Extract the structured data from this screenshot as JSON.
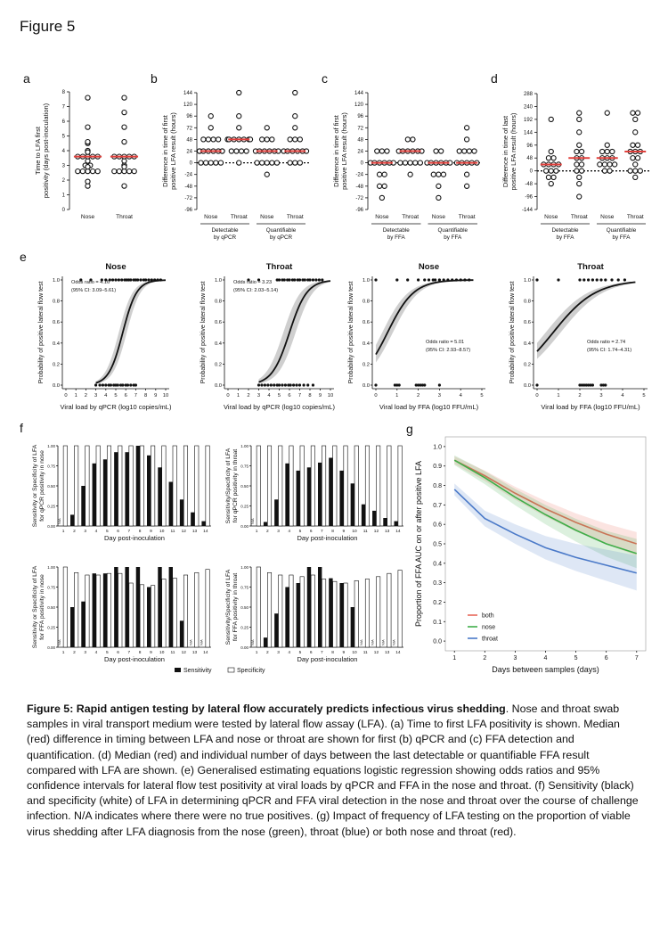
{
  "figure_title": "Figure 5",
  "caption": {
    "bold": "Figure 5: Rapid antigen testing by lateral flow accurately predicts infectious virus shedding",
    "text": ". Nose and throat swab samples in viral transport medium were tested by lateral flow assay (LFA). (a) Time to first LFA positivity is shown. Median (red) difference in timing between LFA and nose or throat are shown for first (b) qPCR and (c) FFA detection and quantification. (d) Median (red) and individual number of days between the last detectable or quantifiable FFA result compared with LFA are shown. (e) Generalised  estimating equations logistic regression showing odds ratios and 95% confidence intervals for lateral flow test positivity at viral loads by qPCR and FFA in the nose and throat. (f) Sensitivity (black) and specificity (white) of LFA in determining qPCR and FFA viral detection in the nose and throat over the course of challenge infection. N/A indicates where there were no true positives. (g) Impact of frequency of LFA testing on the proportion of viable virus shedding after LFA diagnosis from the nose (green), throat (blue) or both nose and throat (red)."
  },
  "colors": {
    "median": "#e0403c",
    "black": "#111111",
    "both": "#e8685a",
    "nose": "#3fae49",
    "throat": "#4a79c8"
  },
  "chart_data": [
    {
      "id": "a",
      "type": "scatter",
      "panel_label": "a",
      "ylabel": "Time to LFA first positivity (days post-inoculation)",
      "yticks": [
        "0",
        "1",
        "2",
        "3",
        "4",
        "5",
        "6",
        "7",
        "8"
      ],
      "ylim": [
        0,
        8
      ],
      "categories": [
        "Nose",
        "Throat"
      ],
      "points": [
        [
          1.6,
          1.9,
          2.6,
          2.6,
          2.6,
          2.6,
          2.6,
          2.9,
          3.0,
          3.0,
          3.3,
          3.6,
          3.6,
          3.6,
          3.6,
          3.6,
          3.9,
          4.0,
          4.5,
          4.6,
          5.6,
          7.6
        ],
        [
          1.6,
          2.6,
          2.6,
          2.6,
          2.6,
          2.6,
          2.9,
          3.0,
          3.3,
          3.6,
          3.6,
          3.6,
          3.6,
          3.6,
          4.6,
          5.6,
          6.6,
          7.6
        ]
      ],
      "medians": [
        3.6,
        3.6
      ]
    },
    {
      "id": "b",
      "type": "scatter",
      "panel_label": "b",
      "ylabel": "Difference in time of first positive LFA result (hours)",
      "yticks": [
        "-96",
        "-72",
        "-48",
        "-24",
        "0",
        "24",
        "48",
        "72",
        "96",
        "120",
        "144"
      ],
      "ylim": [
        -96,
        144
      ],
      "categories": [
        "Nose",
        "Throat",
        "Nose",
        "Throat"
      ],
      "groups": [
        "Detectable by qPCR",
        "Quantifiable by qPCR"
      ],
      "points": [
        [
          0,
          0,
          0,
          0,
          0,
          24,
          24,
          24,
          24,
          24,
          24,
          24,
          24,
          48,
          48,
          48,
          48,
          72,
          96
        ],
        [
          0,
          24,
          24,
          24,
          24,
          48,
          48,
          48,
          48,
          48,
          48,
          48,
          72,
          96,
          144
        ],
        [
          -24,
          0,
          0,
          0,
          0,
          0,
          24,
          24,
          24,
          24,
          24,
          24,
          48,
          48,
          48,
          72
        ],
        [
          0,
          0,
          0,
          24,
          24,
          24,
          24,
          24,
          24,
          48,
          48,
          48,
          72,
          96,
          144
        ]
      ],
      "medians": [
        24,
        48,
        24,
        24
      ]
    },
    {
      "id": "c",
      "type": "scatter",
      "panel_label": "c",
      "ylabel": "Difference in time of first positive LFA result (hours)",
      "yticks": [
        "-96",
        "-72",
        "-48",
        "-24",
        "0",
        "24",
        "48",
        "72",
        "96",
        "120",
        "144"
      ],
      "ylim": [
        -96,
        144
      ],
      "categories": [
        "Nose",
        "Throat",
        "Nose",
        "Throat"
      ],
      "groups": [
        "Detectable by FFA",
        "Quantifiable by FFA"
      ],
      "points": [
        [
          -72,
          -48,
          -48,
          -24,
          -24,
          0,
          0,
          0,
          0,
          0,
          0,
          24,
          24,
          24
        ],
        [
          -24,
          0,
          0,
          0,
          0,
          0,
          24,
          24,
          24,
          24,
          24,
          24,
          48,
          48
        ],
        [
          -72,
          -48,
          -24,
          -24,
          -24,
          0,
          0,
          0,
          0,
          0,
          0,
          24,
          24
        ],
        [
          -48,
          -24,
          0,
          0,
          0,
          0,
          0,
          24,
          24,
          24,
          24,
          48,
          72
        ]
      ],
      "medians": [
        0,
        24,
        0,
        0
      ]
    },
    {
      "id": "d",
      "type": "scatter",
      "panel_label": "d",
      "ylabel": "Difference in time of last positive LFA result (hours)",
      "yticks": [
        "-144",
        "-96",
        "-48",
        "0",
        "48",
        "96",
        "144",
        "192",
        "240",
        "288"
      ],
      "ylim": [
        -144,
        288
      ],
      "categories": [
        "Nose",
        "Throat",
        "Nose",
        "Throat"
      ],
      "groups": [
        "Detectable by FFA",
        "Quantifiable by FFA"
      ],
      "points": [
        [
          -48,
          -24,
          -24,
          0,
          0,
          0,
          24,
          24,
          24,
          24,
          48,
          48,
          72,
          192
        ],
        [
          -96,
          -48,
          -24,
          0,
          0,
          24,
          24,
          48,
          48,
          72,
          72,
          96,
          144,
          192,
          216
        ],
        [
          0,
          0,
          24,
          24,
          24,
          24,
          48,
          48,
          48,
          72,
          72,
          72,
          96,
          216
        ],
        [
          -24,
          0,
          0,
          0,
          24,
          48,
          48,
          72,
          72,
          72,
          96,
          96,
          144,
          192,
          216,
          216
        ]
      ],
      "medians": [
        24,
        48,
        48,
        72
      ]
    },
    {
      "id": "e1",
      "type": "line",
      "panel_label": "e",
      "title": "Nose",
      "xlabel": "Viral load by qPCR (log10 copies/mL)",
      "ylabel": "Probability of positive lateral flow test",
      "xticks": [
        "0",
        "1",
        "2",
        "3",
        "4",
        "5",
        "6",
        "7",
        "8",
        "9",
        "10"
      ],
      "xlim": [
        0,
        10
      ],
      "yticks": [
        "0.0",
        "0.2",
        "0.4",
        "0.6",
        "0.8",
        "1.0"
      ],
      "ylim": [
        0,
        1
      ],
      "annotation": [
        "Odds ratio = 4.16",
        "(95% CI: 3.09–5.61)"
      ],
      "curve": {
        "type": "logistic",
        "midpoint": 5.7,
        "slope": 1.43,
        "x_range": [
          3,
          10
        ]
      },
      "ci": {
        "lower_shift": 0.4,
        "upper_shift": 0.4
      },
      "zeros": [
        3.0,
        3.4,
        3.7,
        4.0,
        4.3,
        4.5,
        4.8,
        5.0,
        5.2,
        5.5,
        5.7,
        6.0,
        6.2,
        6.5,
        6.8,
        7.0
      ],
      "ones": [
        1.5,
        2.5,
        3.6,
        4.0,
        4.4,
        4.7,
        5.0,
        5.3,
        5.6,
        5.9,
        6.1,
        6.3,
        6.5,
        6.8,
        7.0,
        7.2,
        7.5,
        7.8,
        8.0,
        8.3,
        8.6,
        8.9,
        9.2,
        9.5
      ]
    },
    {
      "id": "e2",
      "type": "line",
      "panel_label": "",
      "title": "Throat",
      "xlabel": "Viral load by qPCR (log10 copies/mL)",
      "ylabel": "Probability of positive lateral flow test",
      "xticks": [
        "0",
        "1",
        "2",
        "3",
        "4",
        "5",
        "6",
        "7",
        "8",
        "9",
        "10"
      ],
      "xlim": [
        0,
        10
      ],
      "yticks": [
        "0.0",
        "0.2",
        "0.4",
        "0.6",
        "0.8",
        "1.0"
      ],
      "ylim": [
        0,
        1
      ],
      "annotation": [
        "Odds ratio = 3.23",
        "(95% CI: 2.03–5.14)"
      ],
      "curve": {
        "type": "logistic",
        "midpoint": 6.0,
        "slope": 1.17,
        "x_range": [
          3,
          10
        ]
      },
      "ci": {
        "lower_shift": 0.6,
        "upper_shift": 0.6
      },
      "zeros": [
        3.0,
        3.3,
        3.6,
        3.9,
        4.2,
        4.5,
        4.8,
        5.0,
        5.3,
        5.6,
        5.9,
        6.1,
        6.4,
        6.7,
        7.0,
        7.4,
        7.8,
        8.3
      ],
      "ones": [
        2.0,
        3.0,
        4.8,
        5.0,
        5.3,
        5.5,
        5.8,
        6.0,
        6.3,
        6.5,
        6.8,
        7.0,
        7.3,
        7.5,
        7.8,
        8.0,
        8.3,
        8.6,
        8.9,
        9.2
      ]
    },
    {
      "id": "e3",
      "type": "line",
      "panel_label": "",
      "title": "Nose",
      "xlabel": "Viral load by FFA (log10 FFU/mL)",
      "ylabel": "Probability of positive lateral flow test",
      "xticks": [
        "0",
        "1",
        "2",
        "3",
        "4",
        "5"
      ],
      "xlim": [
        0,
        5
      ],
      "yticks": [
        "0.0",
        "0.2",
        "0.4",
        "0.6",
        "0.8",
        "1.0"
      ],
      "ylim": [
        0,
        1
      ],
      "annotation": [
        "Odds ratio = 5.01",
        "(95% CI: 2.93–8.57)"
      ],
      "curve": {
        "type": "logistic",
        "midpoint": 0.55,
        "slope": 1.61,
        "x_range": [
          0,
          4.6
        ]
      },
      "ci": {
        "lower_shift": 0.25,
        "upper_shift": 0.25
      },
      "zeros": [
        0,
        0.9,
        1.0,
        1.1,
        1.9,
        2.0,
        2.1,
        2.2,
        2.3,
        3.0
      ],
      "ones": [
        0,
        1.0,
        1.5,
        2.0,
        2.3,
        2.5,
        2.7,
        2.8,
        3.0,
        3.2,
        3.4,
        3.6,
        3.8,
        4.0,
        4.2,
        4.4
      ]
    },
    {
      "id": "e4",
      "type": "line",
      "panel_label": "",
      "title": "Throat",
      "xlabel": "Viral load by FFA (log10 FFU/mL)",
      "ylabel": "Probability of positive lateral flow test",
      "xticks": [
        "0",
        "1",
        "2",
        "3",
        "4",
        "5"
      ],
      "xlim": [
        0,
        5
      ],
      "yticks": [
        "0.0",
        "0.2",
        "0.4",
        "0.6",
        "0.8",
        "1.0"
      ],
      "ylim": [
        0,
        1
      ],
      "annotation": [
        "Odds ratio = 2.74",
        "(95% CI: 1.74–4.31)"
      ],
      "curve": {
        "type": "logistic",
        "midpoint": 0.75,
        "slope": 1.0,
        "x_range": [
          0,
          4.6
        ]
      },
      "ci": {
        "lower_shift": 0.35,
        "upper_shift": 0.35
      },
      "zeros": [
        0,
        2.0,
        2.1,
        2.2,
        2.3,
        2.4,
        2.5,
        2.6,
        3.0,
        3.1,
        3.2
      ],
      "ones": [
        0,
        1.0,
        2.0,
        2.2,
        2.4,
        2.6,
        2.8,
        3.0,
        3.2,
        3.5,
        3.8,
        4.1
      ]
    },
    {
      "id": "f1",
      "type": "bar",
      "panel_label": "f",
      "ylabel": [
        "Sensitivity or Specificity of LFA",
        "for qPCR positivity in nose"
      ],
      "xlabel": "Day post-inoculation",
      "categories": [
        "1",
        "2",
        "3",
        "4",
        "5",
        "6",
        "7",
        "8",
        "9",
        "10",
        "11",
        "12",
        "13",
        "14"
      ],
      "series": [
        {
          "name": "Sensitivity",
          "values": [
            0,
            0.14,
            0.5,
            0.78,
            0.83,
            0.92,
            0.92,
            1.0,
            0.88,
            0.73,
            0.55,
            0.33,
            0.17,
            0.06
          ]
        },
        {
          "name": "Specificity",
          "values": [
            1,
            1,
            1,
            1,
            1,
            1,
            1,
            1,
            1,
            1,
            1,
            1,
            1,
            1
          ]
        }
      ],
      "na": [
        "N/A",
        "",
        "",
        "",
        "",
        "",
        "",
        "",
        "",
        "",
        "",
        "",
        "",
        ""
      ],
      "yticks": [
        "0.00",
        "0.25",
        "0.50",
        "0.75",
        "1.00"
      ],
      "ylim": [
        0,
        1
      ]
    },
    {
      "id": "f2",
      "type": "bar",
      "panel_label": "",
      "ylabel": [
        "Sensitivity/Specificity of LFA",
        "for qPCR positivity in throat"
      ],
      "xlabel": "Day post-inoculation",
      "categories": [
        "1",
        "2",
        "3",
        "4",
        "5",
        "6",
        "7",
        "8",
        "9",
        "10",
        "11",
        "12",
        "13",
        "14"
      ],
      "series": [
        {
          "name": "Sensitivity",
          "values": [
            0,
            0.05,
            0.33,
            0.78,
            0.69,
            0.73,
            0.79,
            0.85,
            0.69,
            0.53,
            0.27,
            0.19,
            0.1,
            0.06
          ]
        },
        {
          "name": "Specificity",
          "values": [
            1,
            1,
            1,
            1,
            1,
            1,
            1,
            1,
            1,
            1,
            1,
            1,
            1,
            1
          ]
        }
      ],
      "na": [
        "N/A",
        "",
        "",
        "",
        "",
        "",
        "",
        "",
        "",
        "",
        "",
        "",
        "",
        ""
      ],
      "yticks": [
        "0.00",
        "0.25",
        "0.50",
        "0.75",
        "1.00"
      ],
      "ylim": [
        0,
        1
      ]
    },
    {
      "id": "f3",
      "type": "bar",
      "panel_label": "",
      "ylabel": [
        "Sensitivity or Specificity of LFA",
        "for FFA positivity in nose"
      ],
      "xlabel": "Day post-inoculation",
      "categories": [
        "1",
        "2",
        "3",
        "4",
        "5",
        "6",
        "7",
        "8",
        "9",
        "10",
        "11",
        "12",
        "13",
        "14"
      ],
      "series": [
        {
          "name": "Sensitivity",
          "values": [
            0,
            0.5,
            0.57,
            0.92,
            0.92,
            1.0,
            1.0,
            1.0,
            0.75,
            1.0,
            1.0,
            0.33,
            0,
            0
          ]
        },
        {
          "name": "Specificity",
          "values": [
            1,
            0.93,
            0.9,
            0.9,
            0.92,
            0.92,
            0.8,
            0.78,
            0.77,
            0.85,
            0.86,
            0.9,
            0.93,
            0.97
          ]
        }
      ],
      "na": [
        "N/A",
        "",
        "",
        "",
        "",
        "",
        "",
        "",
        "",
        "",
        "",
        "",
        "N/A",
        "N/A"
      ],
      "yticks": [
        "0.00",
        "0.25",
        "0.50",
        "0.75",
        "1.00"
      ],
      "ylim": [
        0,
        1
      ]
    },
    {
      "id": "f4",
      "type": "bar",
      "panel_label": "",
      "ylabel": [
        "Sensitivity/Specificity of LFA",
        "for FFA positivity in throat"
      ],
      "xlabel": "Day post-inoculation",
      "categories": [
        "1",
        "2",
        "3",
        "4",
        "5",
        "6",
        "7",
        "8",
        "9",
        "10",
        "11",
        "12",
        "13",
        "14"
      ],
      "series": [
        {
          "name": "Sensitivity",
          "values": [
            0,
            0.12,
            0.42,
            0.75,
            0.8,
            1.0,
            1.0,
            0.86,
            0.8,
            0.5,
            0,
            0,
            0,
            0
          ]
        },
        {
          "name": "Specificity",
          "values": [
            1,
            0.93,
            0.9,
            0.9,
            0.88,
            0.9,
            0.85,
            0.82,
            0.8,
            0.83,
            0.85,
            0.88,
            0.92,
            0.96
          ]
        }
      ],
      "na": [
        "N/A",
        "",
        "",
        "",
        "",
        "",
        "",
        "",
        "",
        "",
        "N/A",
        "N/A",
        "N/A",
        "N/A"
      ],
      "yticks": [
        "0.00",
        "0.25",
        "0.50",
        "0.75",
        "1.00"
      ],
      "ylim": [
        0,
        1
      ]
    },
    {
      "id": "g",
      "type": "line",
      "panel_label": "g",
      "xlabel": "Days between samples (days)",
      "ylabel": "Proportion of FFA AUC on or after positive LFA",
      "x": [
        1,
        2,
        3,
        4,
        5,
        6,
        7
      ],
      "xticks": [
        "1",
        "2",
        "3",
        "4",
        "5",
        "6",
        "7"
      ],
      "xlim": [
        0.7,
        7.3
      ],
      "yticks": [
        "0.0",
        "0.1",
        "0.2",
        "0.3",
        "0.4",
        "0.5",
        "0.6",
        "0.7",
        "0.8",
        "0.9",
        "1.0"
      ],
      "ylim": [
        -0.05,
        1.05
      ],
      "series": [
        {
          "name": "both",
          "values": [
            0.93,
            0.85,
            0.76,
            0.68,
            0.61,
            0.55,
            0.5
          ],
          "ci_width": 0.04
        },
        {
          "name": "nose",
          "values": [
            0.93,
            0.84,
            0.74,
            0.65,
            0.57,
            0.5,
            0.45
          ],
          "ci_width": 0.05
        },
        {
          "name": "throat",
          "values": [
            0.78,
            0.63,
            0.55,
            0.48,
            0.43,
            0.39,
            0.35
          ],
          "ci_width": 0.06
        }
      ]
    }
  ],
  "legend_f": {
    "sensitivity": "Sensitivity",
    "specificity": "Specificity"
  }
}
